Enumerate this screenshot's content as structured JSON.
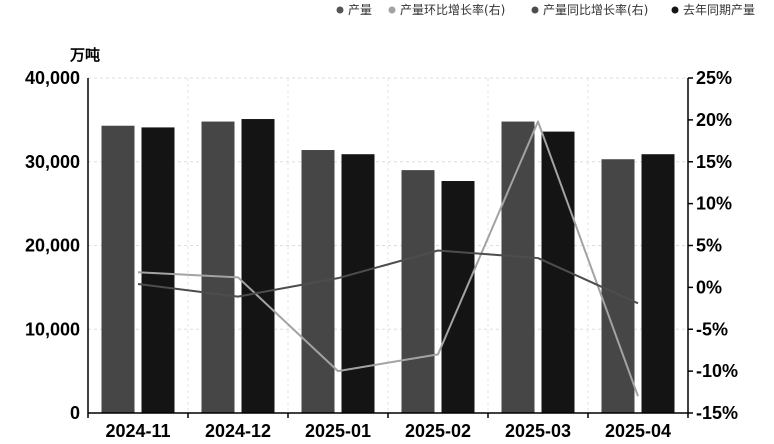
{
  "chart_data": {
    "type": "bar",
    "categories": [
      "2024-11",
      "2024-12",
      "2025-01",
      "2025-02",
      "2025-03",
      "2025-04"
    ],
    "y_unit": "万吨",
    "ylim": [
      0,
      40000
    ],
    "y_ticks": [
      0,
      10000,
      20000,
      30000,
      40000
    ],
    "y_tick_labels": [
      "0",
      "10,000",
      "20,000",
      "30,000",
      "40,000"
    ],
    "y2lim": [
      -15,
      25
    ],
    "y2_ticks": [
      -15,
      -10,
      -5,
      0,
      5,
      10,
      15,
      20,
      25
    ],
    "y2_tick_labels": [
      "-15%",
      "-10%",
      "-5%",
      "0%",
      "5%",
      "10%",
      "15%",
      "20%",
      "25%"
    ],
    "grid": true,
    "legend_position": "top-right",
    "series": [
      {
        "name": "产量",
        "kind": "bar",
        "axis": "left",
        "color": "#464646",
        "values": [
          34300,
          34800,
          31400,
          29000,
          34800,
          30300
        ]
      },
      {
        "name": "产量环比增长率(右)",
        "kind": "line",
        "axis": "right",
        "color": "#a3a3a3",
        "values": [
          1.8,
          1.2,
          -10,
          -8,
          19.8,
          -13
        ]
      },
      {
        "name": "产量同比增长率(右)",
        "kind": "line",
        "axis": "right",
        "color": "#4d4d4d",
        "values": [
          0.4,
          -1.1,
          1.1,
          4.4,
          3.5,
          -1.9
        ]
      },
      {
        "name": "去年同期产量",
        "kind": "bar",
        "axis": "left",
        "color": "#141414",
        "values": [
          34100,
          35100,
          30900,
          27700,
          33600,
          30900
        ]
      }
    ]
  }
}
